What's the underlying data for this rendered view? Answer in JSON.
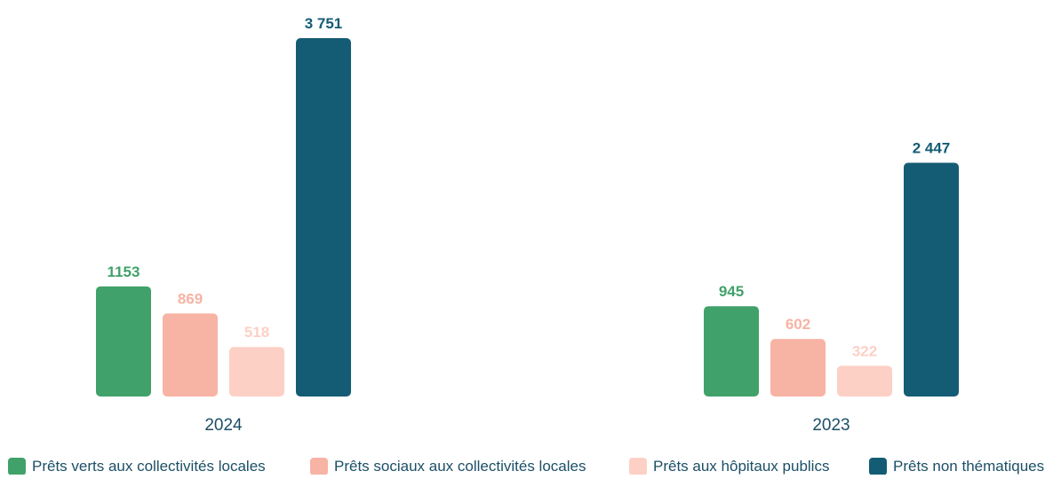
{
  "chart_data": {
    "type": "bar",
    "categories": [
      "2024",
      "2023"
    ],
    "series": [
      {
        "name": "Prêts verts aux collectivités locales",
        "color": "#41a16a",
        "values": [
          1153,
          945
        ],
        "labels": [
          "1153",
          "945"
        ]
      },
      {
        "name": "Prêts sociaux aux collectivités locales",
        "color": "#f7b3a4",
        "values": [
          869,
          602
        ],
        "labels": [
          "869",
          "602"
        ]
      },
      {
        "name": "Prêts aux hôpitaux publics",
        "color": "#fdd0c5",
        "values": [
          518,
          322
        ],
        "labels": [
          "518",
          "322"
        ]
      },
      {
        "name": "Prêts non thématiques",
        "color": "#145c74",
        "values": [
          3751,
          2447
        ],
        "labels": [
          "3 751",
          "2 447"
        ]
      }
    ],
    "xlabel": "",
    "ylabel": "",
    "grid": false,
    "legend": "bottom"
  },
  "colors": {
    "category_label": "#1c4f66"
  }
}
